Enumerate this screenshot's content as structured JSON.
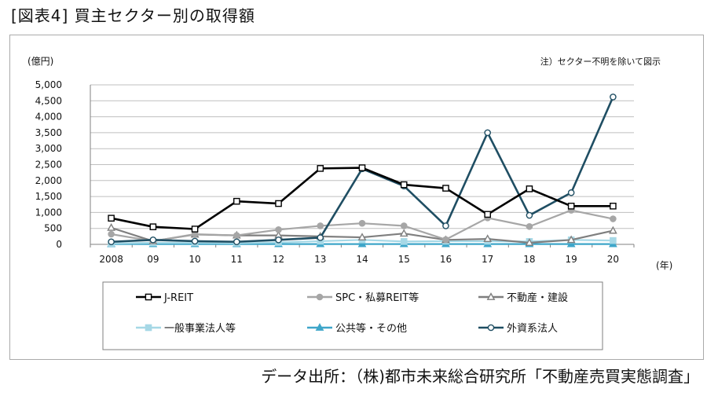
{
  "page": {
    "title": "[図表4] 買主セクター別の取得額",
    "source": "データ出所：（株)都市未来総合研究所「不動産売買実態調査」"
  },
  "chart_data": {
    "type": "line",
    "title": "",
    "ylabel": "(億円)",
    "xlabel": "(年)",
    "note": "注）セクター不明を除いて図示",
    "categories": [
      "2008",
      "09",
      "10",
      "11",
      "12",
      "13",
      "14",
      "15",
      "16",
      "17",
      "18",
      "19",
      "20"
    ],
    "ylim": [
      0,
      5000
    ],
    "yticks": [
      0,
      500,
      1000,
      1500,
      2000,
      2500,
      3000,
      3500,
      4000,
      4500,
      5000
    ],
    "ytick_labels": [
      "0",
      "500",
      "1,000",
      "1,500",
      "2,000",
      "2,500",
      "3,000",
      "3,500",
      "4,000",
      "4,500",
      "5,000"
    ],
    "grid": "horizontal",
    "legend_position": "bottom",
    "series": [
      {
        "name": "J-REIT",
        "color": "#000000",
        "marker": "square-open",
        "values": [
          820,
          550,
          480,
          1350,
          1280,
          2380,
          2400,
          1870,
          1760,
          940,
          1740,
          1200,
          1200
        ]
      },
      {
        "name": "SPC・私募REIT等",
        "color": "#a6a6a6",
        "marker": "circle-filled",
        "values": [
          320,
          100,
          320,
          280,
          460,
          580,
          660,
          580,
          150,
          830,
          560,
          1070,
          800
        ]
      },
      {
        "name": "不動産・建設",
        "color": "#7f7f7f",
        "marker": "triangle-open",
        "values": [
          520,
          100,
          310,
          280,
          280,
          250,
          220,
          340,
          140,
          170,
          50,
          140,
          430
        ]
      },
      {
        "name": "一般事業法人等",
        "color": "#a6d8e6",
        "marker": "square-filled",
        "values": [
          30,
          50,
          50,
          40,
          60,
          100,
          140,
          90,
          100,
          100,
          90,
          140,
          120
        ]
      },
      {
        "name": "公共等・その他",
        "color": "#3ea6c9",
        "marker": "triangle-filled",
        "values": [
          10,
          10,
          10,
          10,
          10,
          10,
          10,
          10,
          10,
          10,
          10,
          10,
          10
        ]
      },
      {
        "name": "外資系法人",
        "color": "#1f4e63",
        "marker": "circle-open",
        "values": [
          80,
          140,
          100,
          80,
          140,
          210,
          2370,
          1830,
          580,
          3500,
          910,
          1620,
          4620
        ]
      }
    ]
  }
}
